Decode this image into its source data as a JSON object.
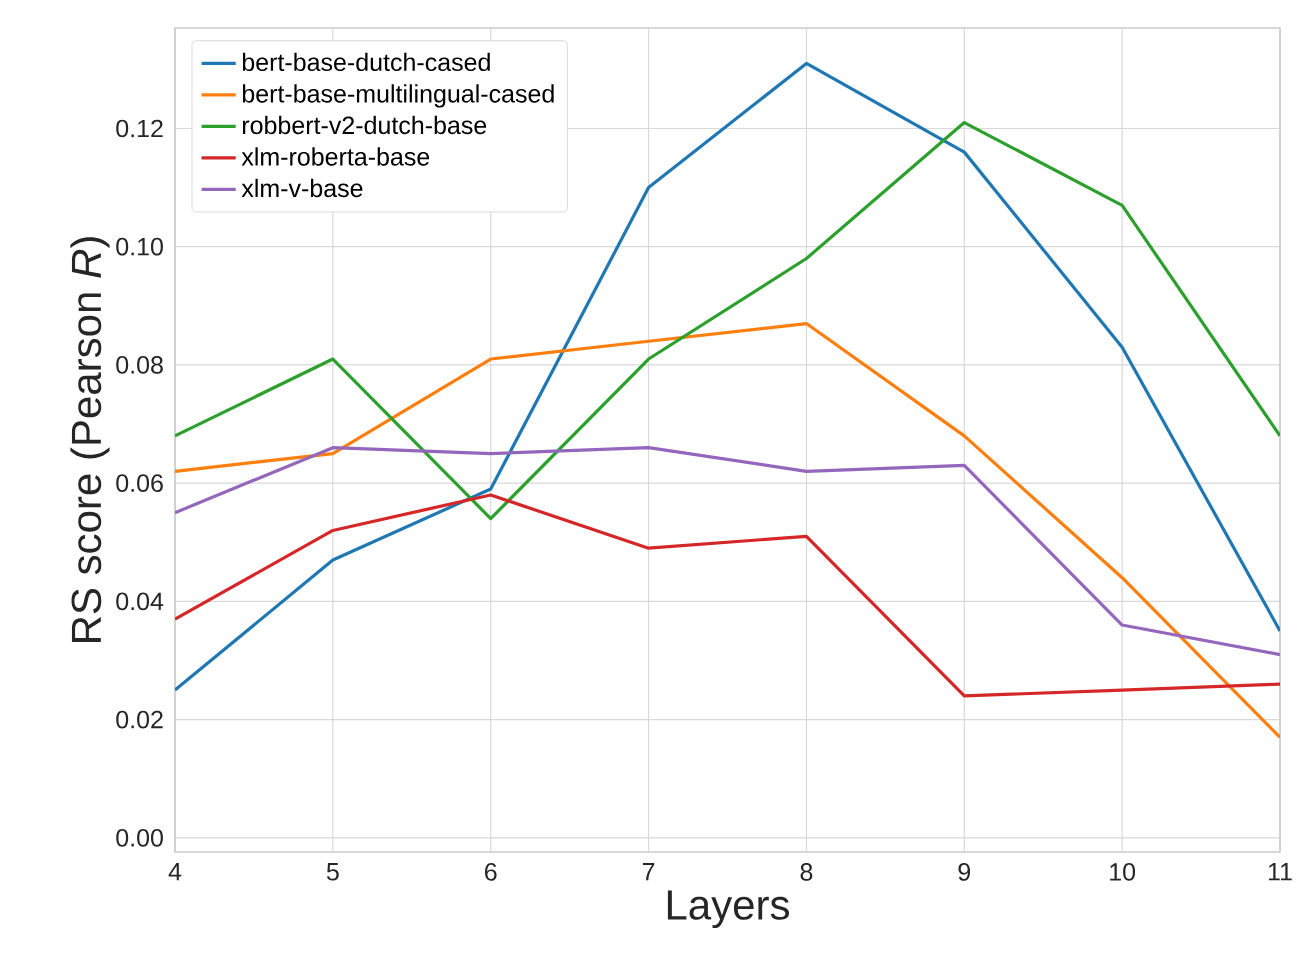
{
  "chart_data": {
    "type": "line",
    "xlabel": "Layers",
    "ylabel": "RS score (Pearson *R*)",
    "x": [
      4,
      5,
      6,
      7,
      8,
      9,
      10,
      11
    ],
    "series": [
      {
        "name": "bert-base-dutch-cased",
        "color": "#1f77b4",
        "values": [
          0.025,
          0.047,
          0.059,
          0.11,
          0.131,
          0.116,
          0.083,
          0.035
        ]
      },
      {
        "name": "bert-base-multilingual-cased",
        "color": "#ff7f0e",
        "values": [
          0.062,
          0.065,
          0.081,
          0.084,
          0.087,
          0.068,
          0.044,
          0.017
        ]
      },
      {
        "name": "robbert-v2-dutch-base",
        "color": "#2ca02c",
        "values": [
          0.068,
          0.081,
          0.054,
          0.081,
          0.098,
          0.121,
          0.107,
          0.068
        ]
      },
      {
        "name": "xlm-roberta-base",
        "color": "#d62728",
        "values": [
          0.037,
          0.052,
          0.058,
          0.049,
          0.051,
          0.024,
          0.025,
          0.026
        ]
      },
      {
        "name": "xlm-v-base",
        "color": "#9467bd",
        "values": [
          0.055,
          0.066,
          0.065,
          0.066,
          0.062,
          0.063,
          0.036,
          0.031
        ]
      }
    ],
    "xlim": [
      4,
      11
    ],
    "ylim": [
      -0.0024,
      0.137
    ],
    "xticks": [
      4,
      5,
      6,
      7,
      8,
      9,
      10,
      11
    ],
    "yticks": [
      {
        "value": 0,
        "label": "0.00"
      },
      {
        "value": 0.02,
        "label": "0.02"
      },
      {
        "value": 0.04,
        "label": "0.04"
      },
      {
        "value": 0.06,
        "label": "0.06"
      },
      {
        "value": 0.08,
        "label": "0.08"
      },
      {
        "value": 0.1,
        "label": "0.10"
      },
      {
        "value": 0.12,
        "label": "0.12"
      }
    ],
    "grid": true,
    "legend": "top left",
    "marker": "none",
    "line_style": "solid"
  }
}
